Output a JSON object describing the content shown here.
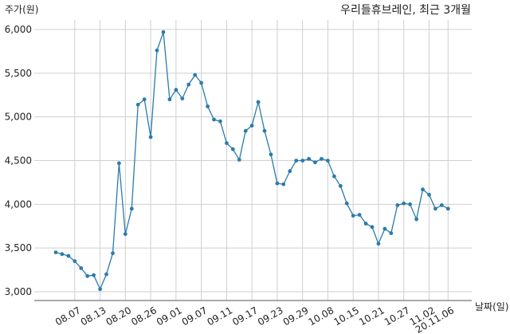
{
  "chart_data": {
    "type": "line",
    "title": "우리들휴브레인, 최근 3개월",
    "ylabel": "주가(원)",
    "xlabel": "날짜(일)",
    "ylim": [
      2900,
      6150
    ],
    "grid": true,
    "yticks": [
      3000,
      3500,
      4000,
      4500,
      5000,
      5500,
      6000
    ],
    "ytick_labels": [
      "3,000",
      "3,500",
      "4,000",
      "4,500",
      "5,000",
      "5,500",
      "6,000"
    ],
    "xtick_labels": [
      "08.07",
      "08.13",
      "08.20",
      "08.26",
      "09.01",
      "09.07",
      "09.11",
      "09.17",
      "09.23",
      "09.29",
      "10.08",
      "10.15",
      "10.21",
      "10.27",
      "11.02",
      "20.11.06"
    ],
    "xtick_positions": [
      3,
      7,
      11,
      15,
      19,
      23,
      27,
      31,
      35,
      39,
      43,
      47,
      51,
      55,
      59,
      62
    ],
    "series_color": "#2b7bab",
    "series": [
      {
        "values": [
          3450,
          3430,
          3410,
          3350,
          3270,
          3180,
          3190,
          3030,
          3200,
          3440,
          4470,
          3660,
          3950,
          5140,
          5200,
          4770,
          5760,
          5970,
          5200,
          5310,
          5210,
          5370,
          5480,
          5390,
          5120,
          4970,
          4950,
          4700,
          4630,
          4510,
          4840,
          4900,
          5170,
          4840,
          4570,
          4240,
          4230,
          4380,
          4500,
          4500,
          4520,
          4480,
          4520,
          4500,
          4320,
          4210,
          4010,
          3870,
          3880,
          3780,
          3740,
          3550,
          3720,
          3670,
          3990,
          4010,
          4000,
          3830,
          4170,
          4110,
          3950,
          3990,
          3950
        ]
      }
    ]
  }
}
